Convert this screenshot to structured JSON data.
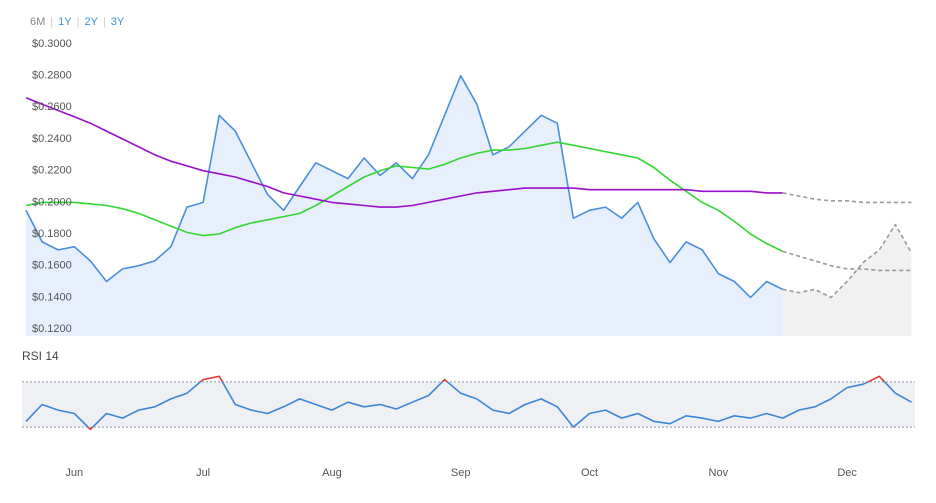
{
  "range_buttons": [
    "6M",
    "1Y",
    "2Y",
    "3Y"
  ],
  "chart_data": [
    {
      "type": "line",
      "ylim": [
        0.1156,
        0.3
      ],
      "yticks": [
        {
          "value": 0.12,
          "label": "$0.1200"
        },
        {
          "value": 0.14,
          "label": "$0.1400"
        },
        {
          "value": 0.16,
          "label": "$0.1600"
        },
        {
          "value": 0.18,
          "label": "$0.1800"
        },
        {
          "value": 0.2,
          "label": "$0.2000"
        },
        {
          "value": 0.22,
          "label": "$0.2200"
        },
        {
          "value": 0.24,
          "label": "$0.2400"
        },
        {
          "value": 0.26,
          "label": "$0.2600"
        },
        {
          "value": 0.28,
          "label": "$0.2800"
        },
        {
          "value": 0.3,
          "label": "$0.3000"
        }
      ],
      "grid": false,
      "series": [
        {
          "color": "#4a8fdb",
          "area_color": "#e6effb",
          "dashed": false,
          "values": [
            0.195,
            0.175,
            0.17,
            0.172,
            0.163,
            0.15,
            0.158,
            0.16,
            0.163,
            0.172,
            0.197,
            0.2,
            0.255,
            0.245,
            0.225,
            0.205,
            0.195,
            0.21,
            0.225,
            0.22,
            0.215,
            0.228,
            0.217,
            0.225,
            0.215,
            0.23,
            0.255,
            0.28,
            0.262,
            0.23,
            0.235,
            0.245,
            0.255,
            0.25,
            0.19,
            0.195,
            0.197,
            0.19,
            0.2,
            0.177,
            0.162,
            0.175,
            0.17,
            0.155,
            0.15,
            0.14,
            0.15,
            0.145,
            null,
            null,
            null,
            null,
            null,
            null,
            null,
            null
          ]
        },
        {
          "color": "#33d633",
          "dashed": false,
          "values": [
            0.198,
            0.2,
            0.2,
            0.2,
            0.199,
            0.198,
            0.196,
            0.193,
            0.189,
            0.185,
            0.181,
            0.179,
            0.18,
            0.184,
            0.187,
            0.189,
            0.191,
            0.193,
            0.198,
            0.204,
            0.21,
            0.216,
            0.22,
            0.223,
            0.222,
            0.221,
            0.224,
            0.228,
            0.231,
            0.233,
            0.233,
            0.234,
            0.236,
            0.238,
            0.236,
            0.234,
            0.232,
            0.23,
            0.228,
            0.222,
            0.214,
            0.207,
            0.2,
            0.195,
            0.188,
            0.18,
            0.174,
            0.169,
            null,
            null,
            null,
            null,
            null,
            null,
            null,
            null
          ]
        },
        {
          "color": "#9a0fc9",
          "dashed": false,
          "values": [
            0.266,
            0.262,
            0.258,
            0.254,
            0.25,
            0.245,
            0.24,
            0.235,
            0.23,
            0.226,
            0.223,
            0.22,
            0.218,
            0.216,
            0.213,
            0.21,
            0.206,
            0.204,
            0.202,
            0.2,
            0.199,
            0.198,
            0.197,
            0.197,
            0.198,
            0.2,
            0.202,
            0.204,
            0.206,
            0.207,
            0.208,
            0.209,
            0.209,
            0.209,
            0.209,
            0.208,
            0.208,
            0.208,
            0.208,
            0.208,
            0.208,
            0.208,
            0.207,
            0.207,
            0.207,
            0.207,
            0.206,
            0.206,
            null,
            null,
            null,
            null,
            null,
            null,
            null,
            null
          ]
        },
        {
          "color": "#999999",
          "area_color": "#f1f1f1",
          "dashed": true,
          "values": [
            null,
            null,
            null,
            null,
            null,
            null,
            null,
            null,
            null,
            null,
            null,
            null,
            null,
            null,
            null,
            null,
            null,
            null,
            null,
            null,
            null,
            null,
            null,
            null,
            null,
            null,
            null,
            null,
            null,
            null,
            null,
            null,
            null,
            null,
            null,
            null,
            null,
            null,
            null,
            null,
            null,
            null,
            null,
            null,
            null,
            null,
            null,
            0.145,
            0.143,
            0.145,
            0.14,
            0.15,
            0.162,
            0.17,
            0.186,
            0.168
          ]
        },
        {
          "color": "#999999",
          "dashed": true,
          "values": [
            null,
            null,
            null,
            null,
            null,
            null,
            null,
            null,
            null,
            null,
            null,
            null,
            null,
            null,
            null,
            null,
            null,
            null,
            null,
            null,
            null,
            null,
            null,
            null,
            null,
            null,
            null,
            null,
            null,
            null,
            null,
            null,
            null,
            null,
            null,
            null,
            null,
            null,
            null,
            null,
            null,
            null,
            null,
            null,
            null,
            null,
            null,
            0.169,
            0.166,
            0.163,
            0.16,
            0.158,
            0.158,
            0.157,
            0.157,
            0.157
          ]
        },
        {
          "color": "#999999",
          "dashed": true,
          "values": [
            null,
            null,
            null,
            null,
            null,
            null,
            null,
            null,
            null,
            null,
            null,
            null,
            null,
            null,
            null,
            null,
            null,
            null,
            null,
            null,
            null,
            null,
            null,
            null,
            null,
            null,
            null,
            null,
            null,
            null,
            null,
            null,
            null,
            null,
            null,
            null,
            null,
            null,
            null,
            null,
            null,
            null,
            null,
            null,
            null,
            null,
            null,
            0.206,
            0.204,
            0.202,
            0.201,
            0.201,
            0.2,
            0.2,
            0.2,
            0.2
          ]
        }
      ]
    },
    {
      "type": "line",
      "title": "RSI 14",
      "categories": [
        null,
        null,
        null,
        "Jun",
        null,
        null,
        null,
        null,
        null,
        null,
        null,
        "Jul",
        null,
        null,
        null,
        null,
        null,
        null,
        null,
        "Aug",
        null,
        null,
        null,
        null,
        null,
        null,
        null,
        "Sep",
        null,
        null,
        null,
        null,
        null,
        null,
        null,
        "Oct",
        null,
        null,
        null,
        null,
        null,
        null,
        null,
        "Nov",
        null,
        null,
        null,
        null,
        null,
        null,
        null,
        "Dec",
        null,
        null,
        null,
        null
      ],
      "ylim": [
        0,
        100
      ],
      "yticks": [
        30,
        70
      ],
      "grid": true,
      "color": "#3c86d6",
      "extreme_color": "#e03a3a",
      "band_color": "#eef0f3",
      "values": [
        35,
        50,
        45,
        42,
        28,
        42,
        38,
        45,
        48,
        55,
        60,
        72,
        75,
        50,
        45,
        42,
        48,
        55,
        50,
        45,
        52,
        48,
        50,
        46,
        52,
        58,
        72,
        60,
        55,
        45,
        42,
        50,
        55,
        48,
        30,
        42,
        45,
        38,
        42,
        35,
        33,
        40,
        38,
        35,
        40,
        38,
        42,
        38,
        45,
        48,
        55,
        65,
        68,
        75,
        60,
        52
      ]
    }
  ]
}
